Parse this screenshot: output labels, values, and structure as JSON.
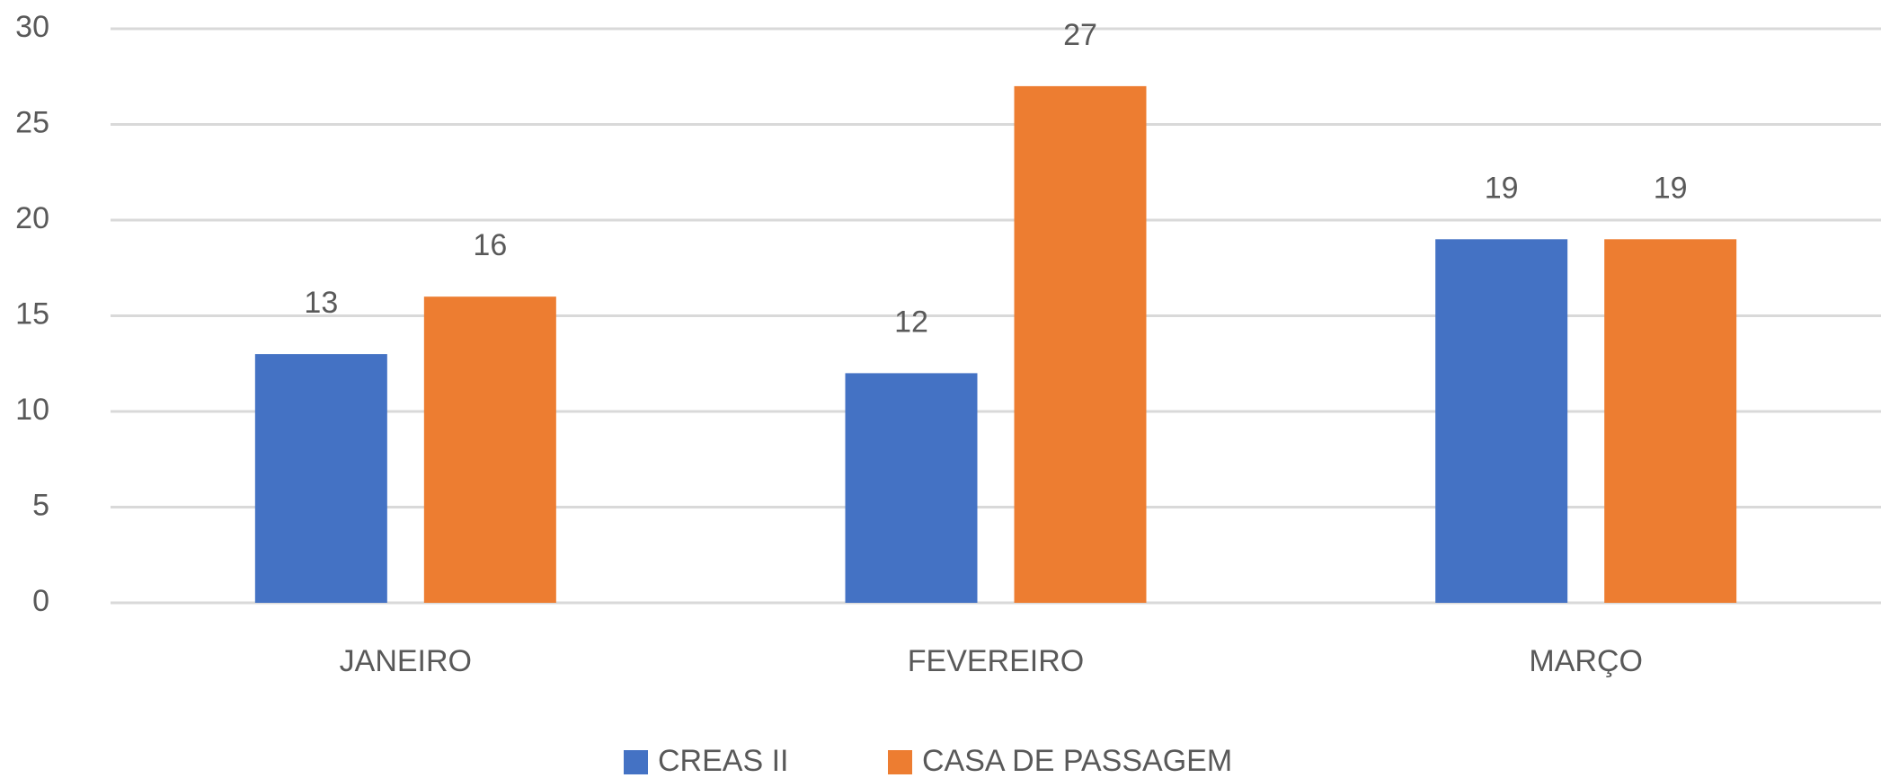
{
  "chart_data": {
    "type": "bar",
    "categories": [
      "JANEIRO",
      "FEVEREIRO",
      "MARÇO"
    ],
    "series": [
      {
        "name": "CREAS II",
        "color": "#4472c4",
        "values": [
          13,
          12,
          19
        ]
      },
      {
        "name": "CASA DE PASSAGEM",
        "color": "#ed7d31",
        "values": [
          16,
          27,
          19
        ]
      }
    ],
    "ylim": [
      0,
      30
    ],
    "yticks": [
      0,
      5,
      10,
      15,
      20,
      25,
      30
    ],
    "grid": true,
    "legend": "bottom"
  }
}
